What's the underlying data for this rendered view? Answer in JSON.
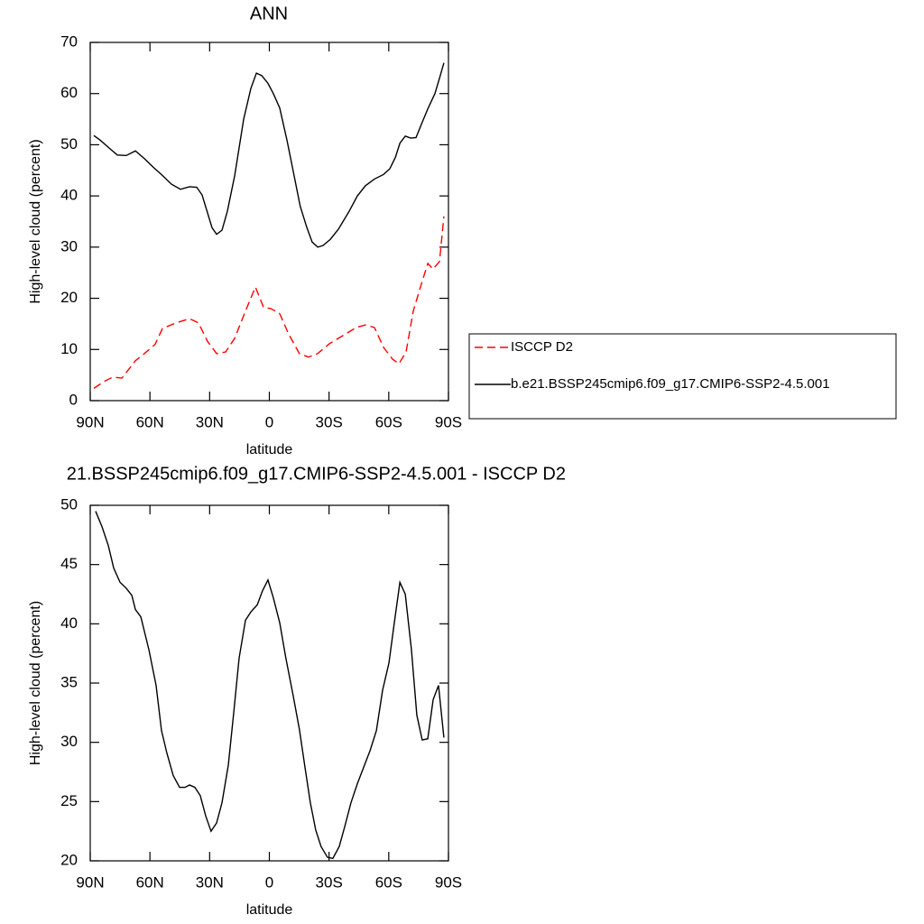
{
  "chart_data": [
    {
      "type": "line",
      "title": "ANN",
      "xlabel": "latitude",
      "ylabel": "High-level cloud (percent)",
      "xlim": [
        90,
        -90
      ],
      "xticks": [
        {
          "value": 90,
          "label": "90N"
        },
        {
          "value": 60,
          "label": "60N"
        },
        {
          "value": 30,
          "label": "30N"
        },
        0,
        {
          "value": -30,
          "label": "30S"
        },
        {
          "value": -60,
          "label": "60S"
        },
        {
          "value": -90,
          "label": "90S"
        }
      ],
      "ylim": [
        0,
        70
      ],
      "yticks": [
        0,
        10,
        20,
        30,
        40,
        50,
        60,
        70
      ],
      "legend": "right",
      "series": [
        {
          "name": "ISCCP D2",
          "color": "#ff0000",
          "dash": true,
          "x": [
            88.2,
            83.2,
            78.7,
            74.1,
            67.3,
            62.8,
            57.4,
            53.7,
            46.9,
            40.1,
            35.6,
            31.1,
            26.5,
            22.0,
            17.4,
            12.0,
            7.0,
            2.9,
            -0.7,
            -5.2,
            -9.7,
            -15.1,
            -19.7,
            -24.3,
            -30.1,
            -36.9,
            -43.7,
            -48.3,
            -52.8,
            -57.4,
            -61.9,
            -65.1,
            -68.7,
            -72.3,
            -76.4,
            -79.6,
            -82.3,
            -85.5,
            -87.7
          ],
          "values": [
            2.4,
            3.7,
            4.6,
            4.4,
            7.8,
            9.2,
            11.0,
            14.1,
            15.2,
            16.0,
            15.2,
            11.6,
            9.2,
            9.5,
            12.2,
            17.5,
            22.2,
            18.2,
            18.0,
            17.0,
            13.0,
            9.2,
            8.5,
            9.2,
            11.1,
            12.7,
            14.3,
            14.8,
            14.3,
            10.4,
            8.1,
            7.2,
            9.5,
            17.5,
            22.8,
            26.8,
            25.7,
            27.2,
            36.0
          ]
        },
        {
          "name": "b.e21.BSSP245cmip6.f09_g17.CMIP6-SSP2-4.5.001",
          "color": "#000000",
          "dash": false,
          "x": [
            88.2,
            85.0,
            80.0,
            76.4,
            71.9,
            67.3,
            62.8,
            58.3,
            53.7,
            49.2,
            44.7,
            40.1,
            36.5,
            33.8,
            28.8,
            26.5,
            23.8,
            21.1,
            17.4,
            12.9,
            9.3,
            6.5,
            3.8,
            0.7,
            -2.0,
            -5.2,
            -8.8,
            -11.9,
            -15.5,
            -18.7,
            -21.5,
            -24.3,
            -26.9,
            -30.6,
            -34.7,
            -40.1,
            -44.2,
            -48.3,
            -52.8,
            -57.4,
            -60.5,
            -63.3,
            -65.6,
            -68.3,
            -71.0,
            -73.7,
            -76.4,
            -79.6,
            -83.2,
            -85.5,
            -87.7
          ],
          "values": [
            51.8,
            50.9,
            49.2,
            48.0,
            47.9,
            48.8,
            47.3,
            45.6,
            44.0,
            42.3,
            41.3,
            41.8,
            41.7,
            40.2,
            33.8,
            32.5,
            33.3,
            37.0,
            44.0,
            55.0,
            61.0,
            64.0,
            63.5,
            62.0,
            60.0,
            57.2,
            51.0,
            45.0,
            38.0,
            34.0,
            31.0,
            30.0,
            30.3,
            31.5,
            33.5,
            37.0,
            40.0,
            42.0,
            43.3,
            44.2,
            45.3,
            47.5,
            50.3,
            51.7,
            51.3,
            51.4,
            54.0,
            57.0,
            60.0,
            63.0,
            66.0
          ]
        }
      ]
    },
    {
      "type": "line",
      "title": "21.BSSP245cmip6.f09_g17.CMIP6-SSP2-4.5.001 - ISCCP D2",
      "xlabel": "latitude",
      "ylabel": "High-level cloud (percent)",
      "xlim": [
        90,
        -90
      ],
      "xticks": [
        {
          "value": 90,
          "label": "90N"
        },
        {
          "value": 60,
          "label": "60N"
        },
        {
          "value": 30,
          "label": "30N"
        },
        0,
        {
          "value": -30,
          "label": "30S"
        },
        {
          "value": -60,
          "label": "60S"
        },
        {
          "value": -90,
          "label": "90S"
        }
      ],
      "ylim": [
        20,
        50
      ],
      "yticks": [
        20,
        25,
        30,
        35,
        40,
        45,
        50
      ],
      "color": "#000000",
      "x": [
        87.3,
        84.1,
        80.9,
        78.2,
        75.0,
        71.9,
        69.1,
        67.3,
        64.6,
        60.5,
        56.9,
        54.2,
        51.5,
        48.3,
        45.1,
        42.4,
        40.1,
        37.4,
        34.7,
        32.0,
        29.3,
        26.5,
        23.8,
        20.6,
        17.9,
        15.2,
        12.0,
        9.3,
        6.1,
        3.4,
        0.7,
        -2.0,
        -5.2,
        -8.3,
        -11.9,
        -15.1,
        -17.9,
        -20.6,
        -23.3,
        -26.0,
        -29.2,
        -31.9,
        -35.1,
        -37.9,
        -41.0,
        -44.2,
        -47.4,
        -50.6,
        -53.8,
        -56.9,
        -60.1,
        -62.8,
        -65.6,
        -68.3,
        -71.4,
        -74.1,
        -76.8,
        -79.6,
        -82.3,
        -85.0,
        -87.7
      ],
      "values": [
        49.5,
        48.2,
        46.6,
        44.7,
        43.5,
        43.0,
        42.4,
        41.2,
        40.6,
        37.8,
        34.8,
        31.0,
        29.1,
        27.2,
        26.2,
        26.2,
        26.4,
        26.2,
        25.5,
        23.8,
        22.5,
        23.2,
        24.9,
        28.1,
        32.5,
        37.1,
        40.3,
        41.0,
        41.6,
        42.8,
        43.7,
        42.2,
        40.1,
        37.1,
        34.0,
        31.1,
        27.9,
        24.9,
        22.6,
        21.2,
        20.3,
        20.2,
        21.2,
        22.9,
        24.9,
        26.5,
        27.9,
        29.3,
        31.0,
        34.4,
        36.7,
        40.1,
        43.5,
        42.5,
        37.8,
        32.3,
        30.2,
        30.3,
        33.6,
        34.8,
        30.4
      ]
    }
  ]
}
